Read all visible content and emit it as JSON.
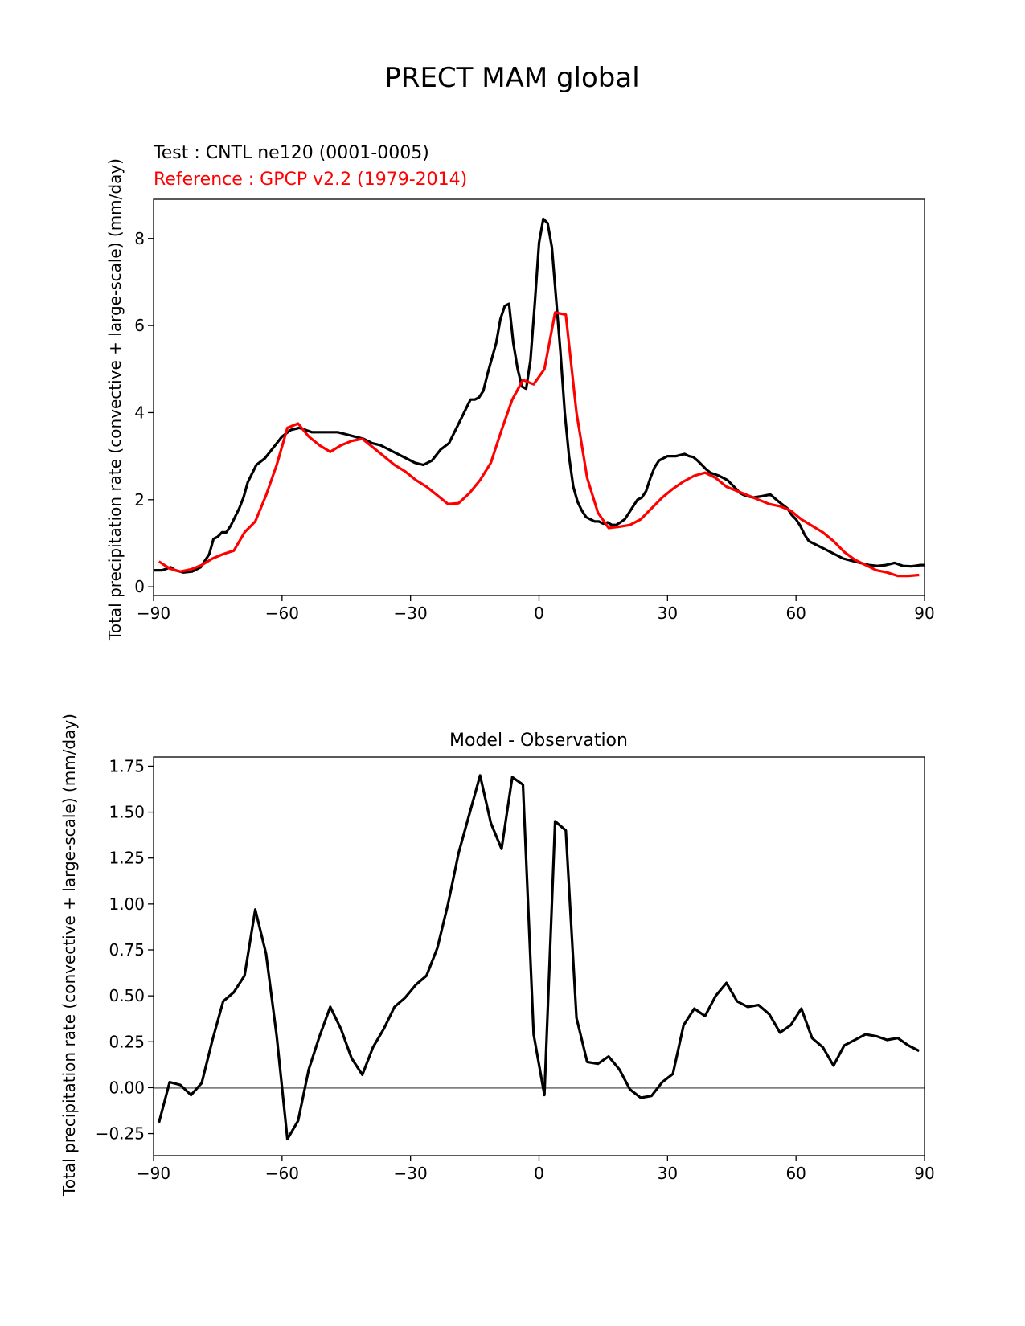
{
  "figure": {
    "title": "PRECT MAM global"
  },
  "colors": {
    "test": "#000000",
    "reference": "#ff0000",
    "zero_line": "#808080"
  },
  "chart_data": [
    {
      "type": "line",
      "name": "zonal-mean-panel",
      "title": "",
      "test_label": "Test : CNTL ne120 (0001-0005)",
      "reference_label": "Reference : GPCP v2.2 (1979-2014)",
      "xlabel": "",
      "ylabel": "Total precipitation rate (convective + large-scale) (mm/day)",
      "xlim": [
        -90,
        90
      ],
      "ylim": [
        -0.2,
        8.9
      ],
      "xticks": [
        -90,
        -60,
        -30,
        0,
        30,
        60,
        90
      ],
      "xtick_labels": [
        "−90",
        "−60",
        "−30",
        "0",
        "30",
        "60",
        "90"
      ],
      "yticks": [
        0,
        2,
        4,
        6,
        8
      ],
      "ytick_labels": [
        "0",
        "2",
        "4",
        "6",
        "8"
      ],
      "series": [
        {
          "name": "Test : CNTL ne120 (0001-0005)",
          "color": "#000000",
          "x": [
            -90,
            -88,
            -86,
            -85,
            -83,
            -81,
            -79,
            -78,
            -77,
            -76,
            -75,
            -74,
            -73,
            -72,
            -70,
            -69,
            -68,
            -66,
            -64,
            -62,
            -60,
            -58,
            -56,
            -53,
            -50,
            -47,
            -45,
            -43,
            -41,
            -39,
            -37,
            -35,
            -33,
            -31,
            -29,
            -27,
            -25,
            -23,
            -21,
            -20,
            -19,
            -18,
            -17,
            -16,
            -15,
            -14,
            -13,
            -12,
            -10,
            -9,
            -8,
            -7,
            -6,
            -5,
            -4,
            -3,
            -2,
            -1,
            0,
            1,
            2,
            3,
            4,
            5,
            6,
            7,
            8,
            9,
            10,
            11,
            12,
            13,
            14,
            15,
            16,
            17,
            18,
            19,
            20,
            21,
            22,
            23,
            24,
            25,
            26,
            27,
            28,
            30,
            32,
            34,
            35,
            36,
            37,
            38,
            39,
            40,
            42,
            43,
            44,
            45,
            46,
            47,
            48,
            50,
            52,
            54,
            56,
            58,
            59,
            60,
            61,
            62,
            63,
            65,
            67,
            69,
            71,
            73,
            75,
            77,
            79,
            81,
            83,
            85,
            87,
            89,
            90
          ],
          "values": [
            0.38,
            0.38,
            0.45,
            0.38,
            0.33,
            0.35,
            0.45,
            0.6,
            0.75,
            1.1,
            1.15,
            1.25,
            1.25,
            1.4,
            1.8,
            2.05,
            2.4,
            2.8,
            2.95,
            3.2,
            3.45,
            3.6,
            3.65,
            3.55,
            3.55,
            3.55,
            3.5,
            3.45,
            3.4,
            3.3,
            3.25,
            3.15,
            3.05,
            2.95,
            2.85,
            2.8,
            2.9,
            3.15,
            3.3,
            3.5,
            3.7,
            3.9,
            4.1,
            4.3,
            4.3,
            4.35,
            4.5,
            4.9,
            5.6,
            6.15,
            6.45,
            6.5,
            5.6,
            5.0,
            4.6,
            4.55,
            5.2,
            6.5,
            7.9,
            8.45,
            8.35,
            7.8,
            6.6,
            5.4,
            4.0,
            3.0,
            2.3,
            1.95,
            1.75,
            1.6,
            1.55,
            1.5,
            1.5,
            1.45,
            1.48,
            1.42,
            1.42,
            1.48,
            1.55,
            1.7,
            1.85,
            2.0,
            2.05,
            2.2,
            2.5,
            2.75,
            2.9,
            3.0,
            3.0,
            3.05,
            3.0,
            2.98,
            2.9,
            2.8,
            2.7,
            2.62,
            2.55,
            2.5,
            2.45,
            2.35,
            2.25,
            2.15,
            2.1,
            2.05,
            2.08,
            2.12,
            1.95,
            1.8,
            1.65,
            1.55,
            1.4,
            1.2,
            1.05,
            0.95,
            0.85,
            0.75,
            0.65,
            0.6,
            0.55,
            0.5,
            0.48,
            0.5,
            0.55,
            0.48,
            0.47,
            0.5,
            0.5
          ]
        },
        {
          "name": "Reference : GPCP v2.2 (1979-2014)",
          "color": "#ff0000",
          "x": [
            -88.75,
            -86.25,
            -83.75,
            -81.25,
            -78.75,
            -76.25,
            -73.75,
            -71.25,
            -68.75,
            -66.25,
            -63.75,
            -61.25,
            -58.75,
            -56.25,
            -53.75,
            -51.25,
            -48.75,
            -46.25,
            -43.75,
            -41.25,
            -38.75,
            -36.25,
            -33.75,
            -31.25,
            -28.75,
            -26.25,
            -23.75,
            -21.25,
            -18.75,
            -16.25,
            -13.75,
            -11.25,
            -8.75,
            -6.25,
            -3.75,
            -1.25,
            1.25,
            3.75,
            6.25,
            8.75,
            11.25,
            13.75,
            16.25,
            18.75,
            21.25,
            23.75,
            26.25,
            28.75,
            31.25,
            33.75,
            36.25,
            38.75,
            41.25,
            43.75,
            46.25,
            48.75,
            51.25,
            53.75,
            56.25,
            58.75,
            61.25,
            63.75,
            66.25,
            68.75,
            71.25,
            73.75,
            76.25,
            78.75,
            81.25,
            83.75,
            86.25,
            88.75
          ],
          "values": [
            0.58,
            0.42,
            0.35,
            0.4,
            0.5,
            0.65,
            0.75,
            0.83,
            1.25,
            1.5,
            2.1,
            2.8,
            3.65,
            3.75,
            3.45,
            3.25,
            3.1,
            3.25,
            3.35,
            3.4,
            3.2,
            3.0,
            2.8,
            2.65,
            2.45,
            2.3,
            2.1,
            1.9,
            1.92,
            2.15,
            2.45,
            2.85,
            3.6,
            4.3,
            4.75,
            4.65,
            5.0,
            6.3,
            6.25,
            4.0,
            2.5,
            1.7,
            1.35,
            1.38,
            1.42,
            1.55,
            1.8,
            2.05,
            2.25,
            2.42,
            2.55,
            2.62,
            2.5,
            2.3,
            2.2,
            2.1,
            2.0,
            1.9,
            1.85,
            1.75,
            1.55,
            1.4,
            1.25,
            1.05,
            0.8,
            0.62,
            0.5,
            0.38,
            0.33,
            0.25,
            0.25,
            0.27
          ]
        }
      ]
    },
    {
      "type": "line",
      "name": "difference-panel",
      "title": "Model - Observation",
      "xlabel": "",
      "ylabel": "Total precipitation rate (convective + large-scale) (mm/day)",
      "xlim": [
        -90,
        90
      ],
      "ylim": [
        -0.37,
        1.8
      ],
      "xticks": [
        -90,
        -60,
        -30,
        0,
        30,
        60,
        90
      ],
      "xtick_labels": [
        "−90",
        "−60",
        "−30",
        "0",
        "30",
        "60",
        "90"
      ],
      "yticks": [
        -0.25,
        0.0,
        0.25,
        0.5,
        0.75,
        1.0,
        1.25,
        1.5,
        1.75
      ],
      "ytick_labels": [
        "−0.25",
        "0.00",
        "0.25",
        "0.50",
        "0.75",
        "1.00",
        "1.25",
        "1.50",
        "1.75"
      ],
      "zero_line": 0,
      "series": [
        {
          "name": "Model - Observation",
          "color": "#000000",
          "x": [
            -88.75,
            -86.25,
            -83.75,
            -81.25,
            -78.75,
            -76.25,
            -73.75,
            -71.25,
            -68.75,
            -66.25,
            -63.75,
            -61.25,
            -58.75,
            -56.25,
            -53.75,
            -51.25,
            -48.75,
            -46.25,
            -43.75,
            -41.25,
            -38.75,
            -36.25,
            -33.75,
            -31.25,
            -28.75,
            -26.25,
            -23.75,
            -21.25,
            -18.75,
            -16.25,
            -13.75,
            -11.25,
            -8.75,
            -6.25,
            -3.75,
            -1.25,
            1.25,
            3.75,
            6.25,
            8.75,
            11.25,
            13.75,
            16.25,
            18.75,
            21.25,
            23.75,
            26.25,
            28.75,
            31.25,
            33.75,
            36.25,
            38.75,
            41.25,
            43.75,
            46.25,
            48.75,
            51.25,
            53.75,
            56.25,
            58.75,
            61.25,
            63.75,
            66.25,
            68.75,
            71.25,
            73.75,
            76.25,
            78.75,
            81.25,
            83.75,
            86.25,
            88.75
          ],
          "values": [
            -0.19,
            0.03,
            0.015,
            -0.04,
            0.025,
            0.26,
            0.47,
            0.52,
            0.61,
            0.97,
            0.73,
            0.28,
            -0.28,
            -0.18,
            0.1,
            0.28,
            0.44,
            0.32,
            0.16,
            0.07,
            0.22,
            0.32,
            0.44,
            0.49,
            0.56,
            0.61,
            0.76,
            1.0,
            1.28,
            1.49,
            1.7,
            1.44,
            1.3,
            1.69,
            1.65,
            0.29,
            -0.04,
            1.45,
            1.4,
            0.38,
            0.14,
            0.13,
            0.17,
            0.1,
            -0.01,
            -0.055,
            -0.045,
            0.03,
            0.075,
            0.34,
            0.43,
            0.39,
            0.5,
            0.57,
            0.47,
            0.44,
            0.45,
            0.4,
            0.3,
            0.34,
            0.43,
            0.27,
            0.22,
            0.12,
            0.23,
            0.26,
            0.29,
            0.28,
            0.26,
            0.27,
            0.23,
            0.2
          ]
        }
      ]
    }
  ]
}
